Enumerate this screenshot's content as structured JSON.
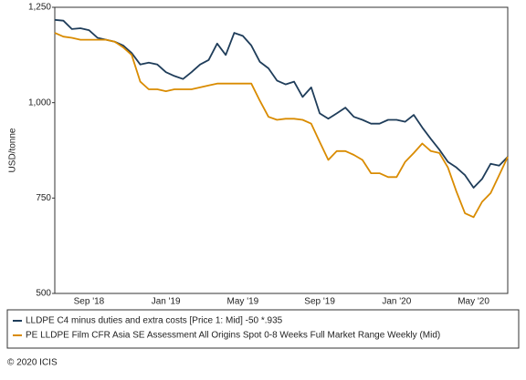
{
  "chart_data": {
    "type": "line",
    "ylabel": "USD/tonne",
    "categories": [
      null,
      null,
      null,
      null,
      "Sep '18",
      null,
      null,
      null,
      null,
      null,
      null,
      null,
      null,
      "Jan '19",
      null,
      null,
      null,
      null,
      null,
      null,
      null,
      null,
      "May '19",
      null,
      null,
      null,
      null,
      null,
      null,
      null,
      null,
      "Sep '19",
      null,
      null,
      null,
      null,
      null,
      null,
      null,
      null,
      "Jan '20",
      null,
      null,
      null,
      null,
      null,
      null,
      null,
      null,
      "May '20",
      null,
      null,
      null,
      null
    ],
    "series": [
      {
        "name": "LLDPE C4 minus duties and extra costs [Price 1: Mid] -50 *.935",
        "color": "#1f3d5a",
        "values": [
          1217,
          1215,
          1193,
          1195,
          1190,
          1170,
          1165,
          1160,
          1150,
          1130,
          1100,
          1105,
          1100,
          1080,
          1070,
          1062,
          1080,
          1100,
          1112,
          1155,
          1125,
          1183,
          1175,
          1150,
          1107,
          1090,
          1058,
          1048,
          1055,
          1015,
          1040,
          972,
          958,
          972,
          987,
          963,
          955,
          945,
          945,
          955,
          955,
          950,
          968,
          935,
          905,
          877,
          845,
          830,
          810,
          777,
          800,
          840,
          835,
          858
        ]
      },
      {
        "name": "PE LLDPE Film CFR Asia SE Assessment All Origins Spot 0-8 Weeks Full Market Range Weekly (Mid)",
        "color": "#d98b00",
        "values": [
          1183,
          1173,
          1170,
          1165,
          1165,
          1165,
          1165,
          1160,
          1145,
          1125,
          1055,
          1035,
          1035,
          1030,
          1035,
          1035,
          1035,
          1040,
          1045,
          1050,
          1050,
          1050,
          1050,
          1050,
          1005,
          963,
          955,
          958,
          958,
          955,
          945,
          897,
          850,
          873,
          873,
          863,
          850,
          815,
          815,
          805,
          805,
          845,
          868,
          893,
          873,
          868,
          830,
          767,
          710,
          700,
          740,
          763,
          810,
          858
        ]
      }
    ],
    "ylim": [
      500,
      1250
    ],
    "yticks": [
      500,
      750,
      {
        "value": 1000,
        "label": "1,000"
      },
      {
        "value": 1250,
        "label": "1,250"
      }
    ],
    "grid": false,
    "footer": "© 2020 ICIS"
  }
}
